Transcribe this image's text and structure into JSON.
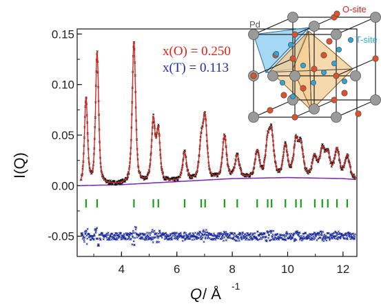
{
  "chart_data": {
    "type": "scatter",
    "xlabel_main": "Q",
    "xlabel_unit": " / Å",
    "xlabel_exp": "-1",
    "ylabel": "I(Q)",
    "xlim": [
      2.4,
      12.5
    ],
    "ylim": [
      -0.07,
      0.155
    ],
    "xticks": [
      4,
      6,
      8,
      10,
      12
    ],
    "yticks": [
      -0.05,
      0.0,
      0.05,
      0.1,
      0.15
    ],
    "ytick_labels": [
      "-0.05",
      "0.00",
      "0.05",
      "0.10",
      "0.15"
    ],
    "annotations": {
      "o_label": "x(O) = 0.250",
      "t_label": "x(T) = 0.113"
    },
    "colors": {
      "observed": "#111111",
      "calculated": "#d2261f",
      "background": "#7b2fbe",
      "reflections": "#1a9e1a",
      "difference": "#1a2a9c"
    },
    "background_curve": {
      "x": [
        2.5,
        4,
        6,
        8,
        10,
        12,
        12.5
      ],
      "y": [
        0.0,
        0.001,
        0.004,
        0.007,
        0.008,
        0.007,
        0.006
      ]
    },
    "peaks": [
      {
        "q": 2.72,
        "height": 0.085
      },
      {
        "q": 3.12,
        "height": 0.13
      },
      {
        "q": 4.45,
        "height": 0.14
      },
      {
        "q": 5.15,
        "height": 0.06
      },
      {
        "q": 5.33,
        "height": 0.05
      },
      {
        "q": 6.28,
        "height": 0.028
      },
      {
        "q": 6.88,
        "height": 0.035
      },
      {
        "q": 7.02,
        "height": 0.058
      },
      {
        "q": 7.72,
        "height": 0.042
      },
      {
        "q": 8.18,
        "height": 0.022
      },
      {
        "q": 8.9,
        "height": 0.026
      },
      {
        "q": 9.28,
        "height": 0.032
      },
      {
        "q": 9.42,
        "height": 0.04
      },
      {
        "q": 9.92,
        "height": 0.03
      },
      {
        "q": 10.3,
        "height": 0.034
      },
      {
        "q": 10.48,
        "height": 0.03
      },
      {
        "q": 10.98,
        "height": 0.02
      },
      {
        "q": 11.25,
        "height": 0.026
      },
      {
        "q": 11.45,
        "height": 0.022
      },
      {
        "q": 11.78,
        "height": 0.028
      },
      {
        "q": 12.15,
        "height": 0.022
      }
    ],
    "reflection_positions": [
      2.72,
      3.12,
      4.45,
      5.15,
      5.33,
      6.28,
      6.88,
      7.02,
      7.72,
      8.18,
      8.9,
      9.28,
      9.42,
      9.92,
      10.3,
      10.48,
      10.98,
      11.25,
      11.45,
      11.78,
      12.15
    ],
    "difference_offset": -0.05,
    "inset": {
      "pd_label": "Pd",
      "o_site_label": "O-site",
      "t_site_label": "T-site",
      "colors": {
        "pd": "#9a9a9a",
        "o_site": "#e0512b",
        "t_site": "#2aa8dc",
        "tetra": "#7ec8ee",
        "octa": "#f2c98a"
      }
    }
  }
}
